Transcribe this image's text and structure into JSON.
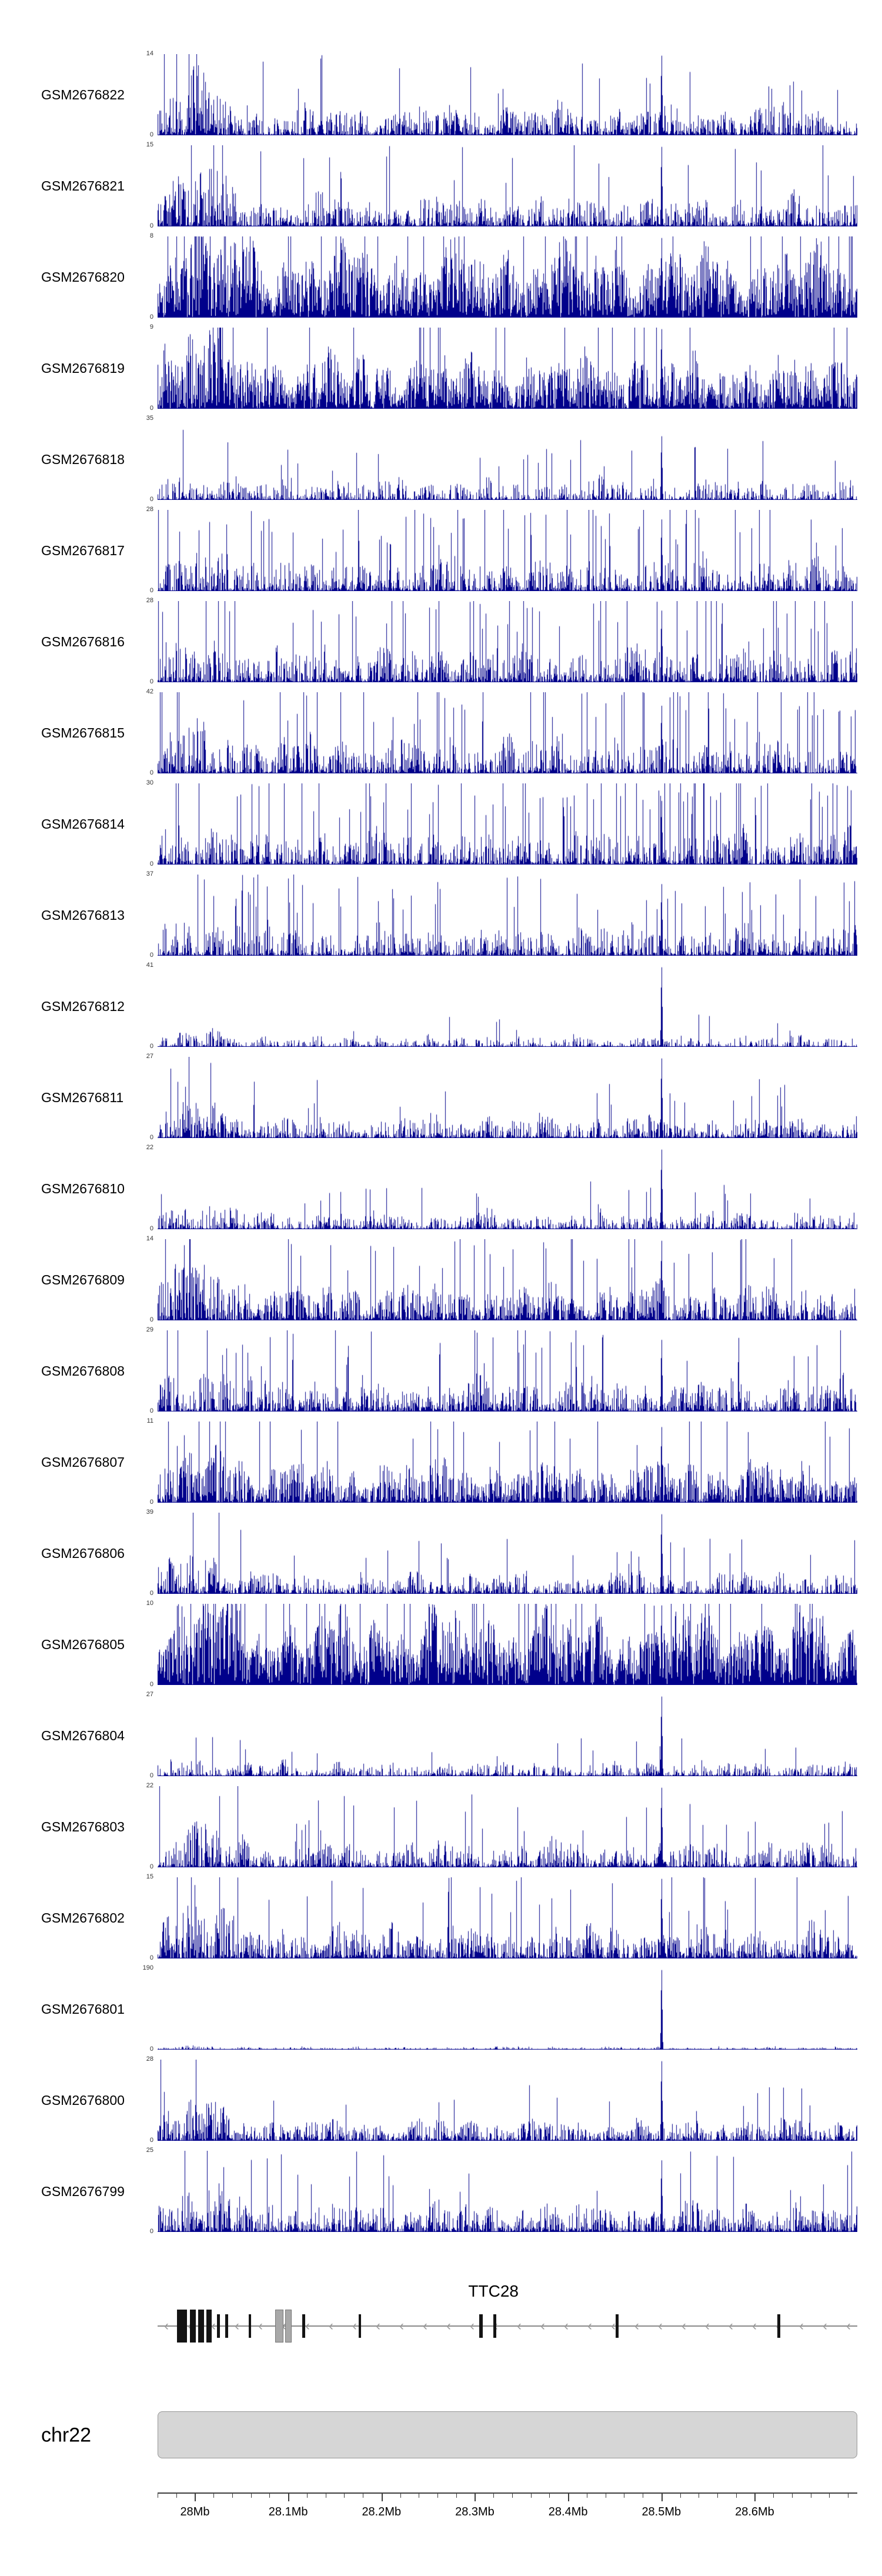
{
  "chart_data": {
    "type": "area",
    "description": "Stacked genome-browser coverage histograms (24 GEO samples) over chr22, with TTC28 gene model, chromosome ideogram and genomic coordinate axis",
    "signal_color": "#00008B",
    "main_peak_mb": 28.5,
    "secondary_peak_mb": 28.515,
    "x_axis": {
      "range_mb": [
        27.96,
        28.71
      ],
      "minor_tick_step_mb": 0.02,
      "ticks": [
        {
          "mb": 28.0,
          "label": "28Mb"
        },
        {
          "mb": 28.1,
          "label": "28.1Mb"
        },
        {
          "mb": 28.2,
          "label": "28.2Mb"
        },
        {
          "mb": 28.3,
          "label": "28.3Mb"
        },
        {
          "mb": 28.4,
          "label": "28.4Mb"
        },
        {
          "mb": 28.5,
          "label": "28.5Mb"
        },
        {
          "mb": 28.6,
          "label": "28.6Mb"
        }
      ]
    },
    "tracks": [
      {
        "label": "GSM2676822",
        "ymin": 0,
        "ymax": 14,
        "profile": {
          "base": 0.4,
          "dens": 0.88,
          "spiky": 2.0,
          "left": 1.2,
          "tall": 0.02,
          "spike": 1.0
        }
      },
      {
        "label": "GSM2676821",
        "ymin": 0,
        "ymax": 15,
        "profile": {
          "base": 0.42,
          "dens": 0.88,
          "spiky": 2.0,
          "left": 1.4,
          "tall": 0.02,
          "spike": 1.0
        }
      },
      {
        "label": "GSM2676820",
        "ymin": 0,
        "ymax": 8,
        "profile": {
          "base": 0.95,
          "dens": 0.98,
          "spiky": 1.1,
          "left": 0.5,
          "tall": 0.03,
          "spike": 1.0
        }
      },
      {
        "label": "GSM2676819",
        "ymin": 0,
        "ymax": 9,
        "profile": {
          "base": 0.75,
          "dens": 0.96,
          "spiky": 1.4,
          "left": 0.8,
          "tall": 0.02,
          "spike": 1.0
        }
      },
      {
        "label": "GSM2676818",
        "ymin": 0,
        "ymax": 35,
        "profile": {
          "base": 0.3,
          "dens": 0.78,
          "spiky": 2.6,
          "left": 0.3,
          "tall": 0.03,
          "spike": 0.8
        }
      },
      {
        "label": "GSM2676817",
        "ymin": 0,
        "ymax": 28,
        "profile": {
          "base": 0.46,
          "dens": 0.8,
          "spiky": 2.2,
          "left": 0.3,
          "tall": 0.05,
          "spike": 0.9
        }
      },
      {
        "label": "GSM2676816",
        "ymin": 0,
        "ymax": 28,
        "profile": {
          "base": 0.5,
          "dens": 0.8,
          "spiky": 2.1,
          "left": 0.4,
          "tall": 0.05,
          "spike": 0.9
        }
      },
      {
        "label": "GSM2676815",
        "ymin": 0,
        "ymax": 42,
        "profile": {
          "base": 0.5,
          "dens": 0.8,
          "spiky": 2.1,
          "left": 0.4,
          "tall": 0.05,
          "spike": 0.85
        }
      },
      {
        "label": "GSM2676814",
        "ymin": 0,
        "ymax": 30,
        "profile": {
          "base": 0.48,
          "dens": 0.8,
          "spiky": 2.1,
          "left": 0.4,
          "tall": 0.05,
          "spike": 0.8
        }
      },
      {
        "label": "GSM2676813",
        "ymin": 0,
        "ymax": 37,
        "profile": {
          "base": 0.42,
          "dens": 0.76,
          "spiky": 2.3,
          "left": 0.4,
          "tall": 0.04,
          "spike": 0.9
        }
      },
      {
        "label": "GSM2676812",
        "ymin": 0,
        "ymax": 41,
        "profile": {
          "base": 0.16,
          "dens": 0.8,
          "spiky": 3.0,
          "left": 0.5,
          "tall": 0.01,
          "spike": 1.0
        }
      },
      {
        "label": "GSM2676811",
        "ymin": 0,
        "ymax": 27,
        "profile": {
          "base": 0.3,
          "dens": 0.85,
          "spiky": 2.2,
          "left": 1.5,
          "tall": 0.02,
          "spike": 1.0
        }
      },
      {
        "label": "GSM2676810",
        "ymin": 0,
        "ymax": 22,
        "profile": {
          "base": 0.24,
          "dens": 0.85,
          "spiky": 2.4,
          "left": 0.8,
          "tall": 0.015,
          "spike": 1.0
        }
      },
      {
        "label": "GSM2676809",
        "ymin": 0,
        "ymax": 14,
        "profile": {
          "base": 0.5,
          "dens": 0.9,
          "spiky": 1.8,
          "left": 1.2,
          "tall": 0.03,
          "spike": 1.0
        }
      },
      {
        "label": "GSM2676808",
        "ymin": 0,
        "ymax": 29,
        "profile": {
          "base": 0.45,
          "dens": 0.85,
          "spiky": 2.1,
          "left": 0.5,
          "tall": 0.04,
          "spike": 0.9
        }
      },
      {
        "label": "GSM2676807",
        "ymin": 0,
        "ymax": 11,
        "profile": {
          "base": 0.58,
          "dens": 0.93,
          "spiky": 1.7,
          "left": 0.6,
          "tall": 0.03,
          "spike": 0.95
        }
      },
      {
        "label": "GSM2676806",
        "ymin": 0,
        "ymax": 39,
        "profile": {
          "base": 0.3,
          "dens": 0.85,
          "spiky": 2.3,
          "left": 1.4,
          "tall": 0.02,
          "spike": 1.0
        }
      },
      {
        "label": "GSM2676805",
        "ymin": 0,
        "ymax": 10,
        "profile": {
          "base": 1.0,
          "dens": 0.98,
          "spiky": 1.0,
          "left": 0.4,
          "tall": 0.04,
          "spike": 1.0,
          "spike2": 0.95
        }
      },
      {
        "label": "GSM2676804",
        "ymin": 0,
        "ymax": 27,
        "profile": {
          "base": 0.2,
          "dens": 0.85,
          "spiky": 2.6,
          "left": 0.5,
          "tall": 0.012,
          "spike": 1.0
        }
      },
      {
        "label": "GSM2676803",
        "ymin": 0,
        "ymax": 22,
        "profile": {
          "base": 0.36,
          "dens": 0.82,
          "spiky": 2.2,
          "left": 1.0,
          "tall": 0.03,
          "spike": 1.0
        }
      },
      {
        "label": "GSM2676802",
        "ymin": 0,
        "ymax": 15,
        "profile": {
          "base": 0.46,
          "dens": 0.86,
          "spiky": 2.0,
          "left": 1.4,
          "tall": 0.03,
          "spike": 1.0
        }
      },
      {
        "label": "GSM2676801",
        "ymin": 0,
        "ymax": 190,
        "profile": {
          "base": 0.045,
          "dens": 0.9,
          "spiky": 3.0,
          "left": 0.2,
          "tall": 0.0,
          "spike": 1.0
        }
      },
      {
        "label": "GSM2676800",
        "ymin": 0,
        "ymax": 28,
        "profile": {
          "base": 0.3,
          "dens": 0.85,
          "spiky": 2.2,
          "left": 1.2,
          "tall": 0.02,
          "spike": 1.0
        }
      },
      {
        "label": "GSM2676799",
        "ymin": 0,
        "ymax": 25,
        "profile": {
          "base": 0.4,
          "dens": 0.9,
          "spiky": 2.0,
          "left": 0.8,
          "tall": 0.02,
          "spike": 0.9
        }
      }
    ],
    "gene_track": {
      "gene": "TTC28",
      "strand": "leftward",
      "label_f": 0.48,
      "exons": [
        {
          "f": 0.028,
          "w": 0.014,
          "h": 56,
          "shade": "black"
        },
        {
          "f": 0.046,
          "w": 0.009,
          "h": 56,
          "shade": "black"
        },
        {
          "f": 0.058,
          "w": 0.008,
          "h": 56,
          "shade": "black"
        },
        {
          "f": 0.07,
          "w": 0.007,
          "h": 56,
          "shade": "black"
        },
        {
          "f": 0.085,
          "w": 0.004,
          "h": 40,
          "shade": "black"
        },
        {
          "f": 0.097,
          "w": 0.004,
          "h": 40,
          "shade": "black"
        },
        {
          "f": 0.13,
          "w": 0.004,
          "h": 40,
          "shade": "black"
        },
        {
          "f": 0.168,
          "w": 0.012,
          "h": 56,
          "shade": "gray"
        },
        {
          "f": 0.182,
          "w": 0.01,
          "h": 56,
          "shade": "gray"
        },
        {
          "f": 0.207,
          "w": 0.004,
          "h": 40,
          "shade": "black"
        },
        {
          "f": 0.287,
          "w": 0.004,
          "h": 40,
          "shade": "black"
        },
        {
          "f": 0.46,
          "w": 0.005,
          "h": 40,
          "shade": "black"
        },
        {
          "f": 0.48,
          "w": 0.004,
          "h": 40,
          "shade": "black"
        },
        {
          "f": 0.655,
          "w": 0.004,
          "h": 40,
          "shade": "black"
        },
        {
          "f": 0.886,
          "w": 0.004,
          "h": 40,
          "shade": "black"
        }
      ]
    },
    "ideogram": {
      "label": "chr22"
    }
  }
}
